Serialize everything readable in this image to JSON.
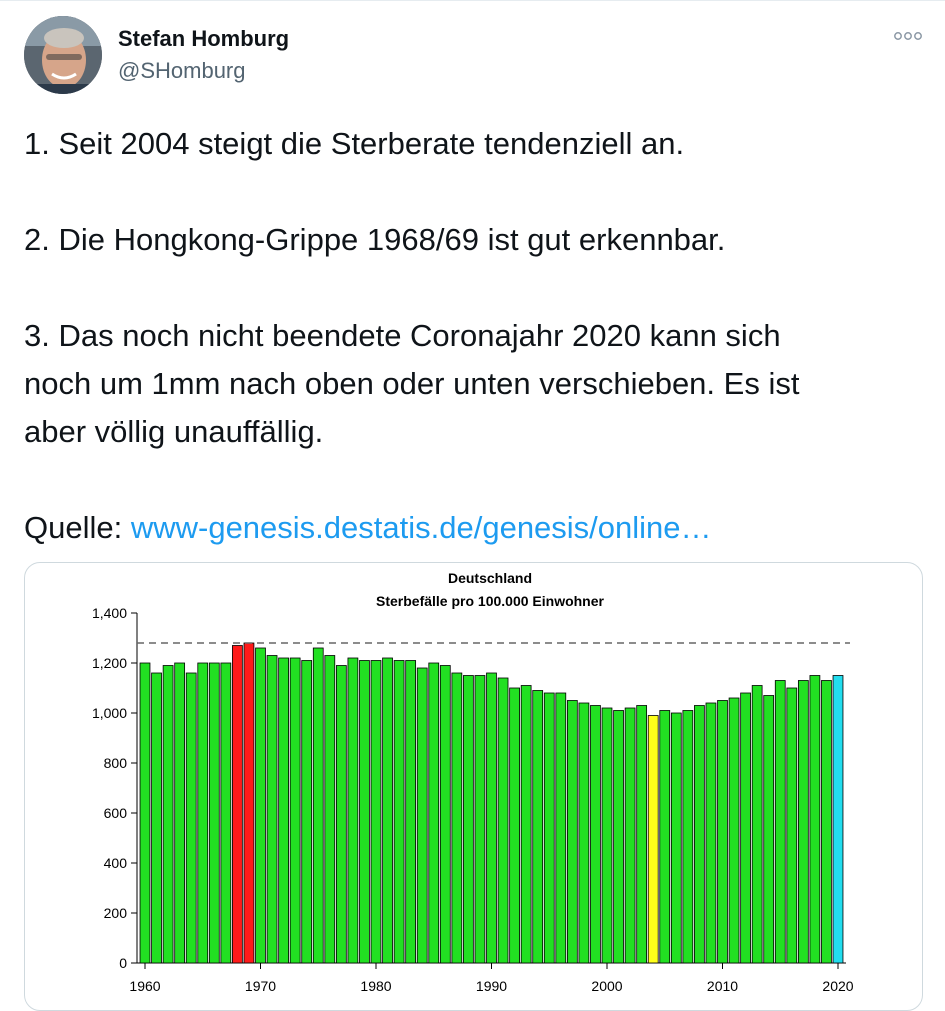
{
  "author": {
    "name": "Stefan Homburg",
    "handle": "@SHomburg"
  },
  "tweet": {
    "line1": "1. Seit 2004 steigt die Sterberate tendenziell an.",
    "line2": "2. Die Hongkong-Grippe 1968/69 ist gut erkennbar.",
    "line3a": "3. Das noch nicht beendete Coronajahr 2020 kann sich",
    "line3b": "noch um 1mm nach oben oder unten verschieben. Es ist",
    "line3c": "aber völlig unauffällig.",
    "source_label": "Quelle: ",
    "source_link": "www-genesis.destatis.de/genesis/online…"
  },
  "icons": {
    "more": "more-dots-icon",
    "avatar": "profile-photo"
  },
  "colors": {
    "link": "#1d9bf0",
    "bar_default": "#22e022",
    "bar_hongkong": "#ff1a1a",
    "bar_2004": "#ffff1a",
    "bar_2020": "#22ddee"
  },
  "chart_data": {
    "type": "bar",
    "title": "Deutschland",
    "subtitle": "Sterbefälle pro 100.000 Einwohner",
    "xlabel": "",
    "ylabel": "",
    "ylim": [
      0,
      1400
    ],
    "yticks": [
      "0",
      "200",
      "400",
      "600",
      "800",
      "1,000",
      "1,200",
      "1,400"
    ],
    "ytick_values": [
      0,
      200,
      400,
      600,
      800,
      1000,
      1200,
      1400
    ],
    "xticks": [
      "1960",
      "1970",
      "1980",
      "1990",
      "2000",
      "2010",
      "2020"
    ],
    "xtick_values": [
      1960,
      1970,
      1980,
      1990,
      2000,
      2010,
      2020
    ],
    "reference_line": 1280,
    "grid": false,
    "categories": [
      1960,
      1961,
      1962,
      1963,
      1964,
      1965,
      1966,
      1967,
      1968,
      1969,
      1970,
      1971,
      1972,
      1973,
      1974,
      1975,
      1976,
      1977,
      1978,
      1979,
      1980,
      1981,
      1982,
      1983,
      1984,
      1985,
      1986,
      1987,
      1988,
      1989,
      1990,
      1991,
      1992,
      1993,
      1994,
      1995,
      1996,
      1997,
      1998,
      1999,
      2000,
      2001,
      2002,
      2003,
      2004,
      2005,
      2006,
      2007,
      2008,
      2009,
      2010,
      2011,
      2012,
      2013,
      2014,
      2015,
      2016,
      2017,
      2018,
      2019,
      2020
    ],
    "values": [
      1200,
      1160,
      1190,
      1200,
      1160,
      1200,
      1200,
      1200,
      1270,
      1280,
      1260,
      1230,
      1220,
      1220,
      1210,
      1260,
      1230,
      1190,
      1220,
      1210,
      1210,
      1220,
      1210,
      1210,
      1180,
      1200,
      1190,
      1160,
      1150,
      1150,
      1160,
      1140,
      1100,
      1110,
      1090,
      1080,
      1080,
      1050,
      1040,
      1030,
      1020,
      1010,
      1020,
      1030,
      990,
      1010,
      1000,
      1010,
      1030,
      1040,
      1050,
      1060,
      1080,
      1110,
      1070,
      1130,
      1100,
      1130,
      1150,
      1130,
      1150
    ],
    "highlight": {
      "1968": "red",
      "1969": "red",
      "2004": "yellow",
      "2020": "cyan"
    }
  }
}
